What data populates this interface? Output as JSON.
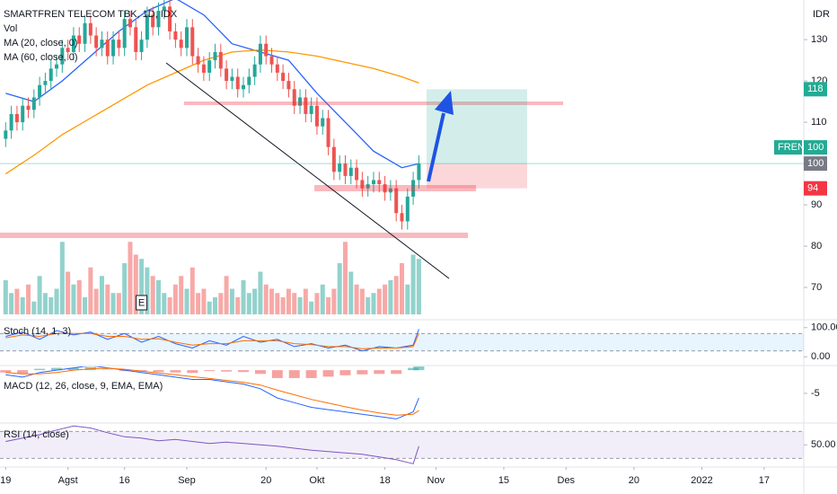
{
  "chart_data": [
    {
      "type": "candlestick",
      "title": "SMARTFREN TELECOM TBK, 1D, IDX",
      "currency": "IDR",
      "volume_label": "Vol",
      "up_color": "#26a69a",
      "down_color": "#ef5350",
      "open": [
        106,
        108,
        112,
        110,
        114,
        113,
        116,
        119,
        120,
        123,
        124,
        128,
        127,
        131,
        129,
        134,
        131,
        128,
        130,
        126,
        130,
        128,
        135,
        133,
        127,
        130,
        136,
        133,
        137,
        138,
        132,
        130,
        128,
        133,
        126,
        124,
        122,
        125,
        127,
        123,
        120,
        121,
        118,
        119,
        121,
        124,
        129,
        126,
        124,
        122,
        120,
        118,
        114,
        116,
        112,
        114,
        109,
        111,
        104,
        98,
        100,
        97,
        99,
        96,
        94,
        95,
        96,
        95,
        93,
        94,
        88,
        86,
        92,
        96
      ],
      "high": [
        110,
        114,
        114,
        116,
        116,
        118,
        121,
        122,
        125,
        126,
        130,
        130,
        133,
        133,
        136,
        136,
        133,
        132,
        132,
        132,
        132,
        137,
        137,
        135,
        132,
        138,
        138,
        139,
        140,
        140,
        134,
        132,
        135,
        135,
        128,
        126,
        127,
        129,
        129,
        125,
        123,
        123,
        121,
        123,
        126,
        131,
        131,
        128,
        126,
        124,
        122,
        120,
        118,
        118,
        116,
        116,
        113,
        113,
        106,
        102,
        102,
        101,
        101,
        98,
        97,
        98,
        98,
        97,
        96,
        96,
        90,
        94,
        98,
        102
      ],
      "low": [
        104,
        106,
        108,
        108,
        111,
        111,
        114,
        117,
        118,
        121,
        122,
        125,
        125,
        127,
        127,
        129,
        126,
        126,
        124,
        124,
        126,
        126,
        131,
        125,
        125,
        128,
        131,
        131,
        135,
        130,
        128,
        126,
        126,
        124,
        122,
        120,
        120,
        123,
        121,
        118,
        118,
        116,
        116,
        117,
        119,
        122,
        124,
        122,
        120,
        118,
        116,
        112,
        112,
        110,
        110,
        107,
        107,
        102,
        96,
        96,
        95,
        95,
        94,
        92,
        92,
        93,
        93,
        91,
        91,
        86,
        84,
        84,
        90,
        94
      ],
      "close": [
        108,
        112,
        110,
        114,
        113,
        116,
        119,
        120,
        123,
        124,
        128,
        127,
        131,
        129,
        134,
        131,
        128,
        130,
        126,
        130,
        128,
        135,
        133,
        127,
        130,
        136,
        133,
        137,
        138,
        132,
        130,
        128,
        133,
        126,
        124,
        122,
        125,
        127,
        123,
        120,
        121,
        118,
        119,
        121,
        124,
        129,
        126,
        124,
        122,
        120,
        118,
        114,
        116,
        112,
        114,
        109,
        111,
        104,
        98,
        100,
        97,
        99,
        96,
        94,
        95,
        96,
        95,
        93,
        94,
        88,
        86,
        92,
        96,
        100
      ],
      "volume": [
        40,
        25,
        30,
        20,
        35,
        15,
        45,
        25,
        20,
        30,
        85,
        50,
        35,
        40,
        20,
        55,
        30,
        45,
        35,
        25,
        25,
        60,
        85,
        70,
        65,
        55,
        45,
        40,
        25,
        20,
        35,
        45,
        30,
        55,
        25,
        30,
        15,
        20,
        25,
        45,
        30,
        20,
        40,
        25,
        30,
        50,
        35,
        30,
        25,
        20,
        30,
        25,
        20,
        30,
        15,
        25,
        35,
        20,
        30,
        60,
        85,
        50,
        35,
        30,
        20,
        25,
        30,
        35,
        40,
        45,
        60,
        35,
        70,
        65
      ],
      "vlim": [
        0,
        100
      ],
      "earnings_marker": {
        "x": 24,
        "label": "E"
      },
      "series": [
        {
          "name": "MA (20, close, 0)",
          "color": "#2962ff",
          "x": [
            0,
            5,
            10,
            15,
            20,
            25,
            30,
            35,
            40,
            45,
            50,
            55,
            60,
            65,
            70,
            73
          ],
          "values": [
            117,
            115,
            120,
            126,
            132,
            137,
            140,
            136,
            129,
            127,
            125,
            117,
            110,
            103,
            99,
            100
          ]
        },
        {
          "name": "MA (60, close, 0)",
          "color": "#ff9800",
          "x": [
            0,
            5,
            10,
            15,
            20,
            25,
            30,
            35,
            40,
            45,
            50,
            55,
            60,
            65,
            70,
            73
          ],
          "values": [
            97.5,
            102,
            107,
            111,
            115,
            119,
            122,
            125,
            127,
            127.5,
            127,
            126,
            124.5,
            123,
            121,
            119.5
          ]
        }
      ],
      "xlim": [
        -1,
        141
      ],
      "xticks": [
        {
          "value": 0,
          "label": "19"
        },
        {
          "value": 11,
          "label": "Agst"
        },
        {
          "value": 21,
          "label": "16"
        },
        {
          "value": 32,
          "label": "Sep"
        },
        {
          "value": 46,
          "label": "20"
        },
        {
          "value": 55,
          "label": "Okt"
        },
        {
          "value": 67,
          "label": "18"
        },
        {
          "value": 76,
          "label": "Nov"
        },
        {
          "value": 88,
          "label": "15"
        },
        {
          "value": 99,
          "label": "Des"
        },
        {
          "value": 111,
          "label": "20"
        },
        {
          "value": 123,
          "label": "2022"
        },
        {
          "value": 134,
          "label": "17"
        }
      ],
      "ylim": [
        62.4,
        139.6
      ],
      "yticks": [
        70,
        80,
        90,
        100,
        110,
        120,
        130
      ],
      "price_labels": [
        {
          "value": 118,
          "color": "#22ab94"
        },
        {
          "value": 100,
          "color": "#787b86"
        },
        {
          "value": 94,
          "color": "#f23645"
        }
      ],
      "last_price": {
        "label": "FREN",
        "value": 100,
        "color": "#22ab94"
      }
    },
    {
      "type": "stoch",
      "title": "Stoch (14, 1, 3)",
      "x": [
        0,
        3,
        6,
        9,
        12,
        15,
        18,
        21,
        24,
        27,
        30,
        33,
        36,
        39,
        42,
        45,
        48,
        51,
        54,
        57,
        60,
        63,
        66,
        69,
        72,
        73
      ],
      "series": [
        {
          "color": "#2962ff",
          "values": [
            70,
            85,
            60,
            90,
            75,
            85,
            60,
            80,
            50,
            70,
            45,
            30,
            55,
            40,
            70,
            50,
            60,
            35,
            45,
            30,
            40,
            20,
            35,
            30,
            40,
            95
          ]
        },
        {
          "color": "#ff6d00",
          "values": [
            65,
            75,
            70,
            80,
            80,
            80,
            70,
            70,
            60,
            62,
            50,
            40,
            45,
            45,
            55,
            55,
            55,
            45,
            42,
            35,
            35,
            28,
            30,
            30,
            35,
            80
          ]
        }
      ],
      "bands": [
        20,
        80
      ],
      "ylim": [
        -27,
        124
      ],
      "yticks": [
        {
          "value": 100,
          "label": "100.00"
        },
        {
          "value": 0,
          "label": "0.00"
        }
      ]
    },
    {
      "type": "macd",
      "title": "MACD (12, 26, close, 9, EMA, EMA)",
      "x": [
        0,
        3,
        6,
        9,
        12,
        15,
        18,
        21,
        24,
        27,
        30,
        33,
        36,
        39,
        42,
        45,
        48,
        51,
        54,
        57,
        60,
        63,
        66,
        69,
        72,
        73
      ],
      "histogram": [
        -0.5,
        -0.7,
        0.3,
        0.5,
        0.5,
        0.7,
        0.1,
        -0.2,
        -0.3,
        -0.4,
        -0.5,
        -0.6,
        -0.2,
        -0.3,
        -0.4,
        -0.8,
        -1.7,
        -1.7,
        -1.7,
        -1.4,
        -1.1,
        -0.9,
        -0.8,
        -0.8,
        0.5,
        2.7
      ],
      "series": [
        {
          "color": "#2962ff",
          "values": [
            -1,
            -1.5,
            -0.5,
            0,
            0.5,
            1,
            0.5,
            0,
            -0.5,
            -1,
            -1.5,
            -2,
            -2,
            -2.5,
            -3,
            -4,
            -6,
            -7,
            -8,
            -8.5,
            -9,
            -9.5,
            -10,
            -10.5,
            -9,
            -6
          ]
        },
        {
          "color": "#ff6d00",
          "values": [
            -0.5,
            -0.8,
            -0.8,
            -0.5,
            0,
            0.3,
            0.4,
            0.2,
            -0.2,
            -0.6,
            -1,
            -1.4,
            -1.8,
            -2.2,
            -2.6,
            -3.2,
            -4.3,
            -5.3,
            -6.3,
            -7.1,
            -7.9,
            -8.6,
            -9.2,
            -9.7,
            -9.5,
            -8.7
          ]
        }
      ],
      "ylim": [
        -11.2,
        0.8
      ],
      "yticks": [
        -5
      ]
    },
    {
      "type": "rsi",
      "title": "RSI (14, close)",
      "x": [
        0,
        3,
        6,
        9,
        12,
        15,
        18,
        21,
        24,
        27,
        30,
        33,
        36,
        39,
        42,
        45,
        48,
        51,
        54,
        57,
        60,
        63,
        66,
        69,
        72,
        73
      ],
      "series": [
        {
          "color": "#7e57c2",
          "values": [
            55,
            60,
            65,
            72,
            78,
            75,
            68,
            62,
            60,
            56,
            58,
            55,
            52,
            54,
            52,
            50,
            48,
            45,
            42,
            40,
            38,
            36,
            32,
            28,
            22,
            48
          ]
        }
      ],
      "bands": [
        30,
        70
      ],
      "ylim": [
        17,
        81
      ],
      "yticks": [
        {
          "value": 50,
          "label": "50.00"
        }
      ]
    }
  ]
}
